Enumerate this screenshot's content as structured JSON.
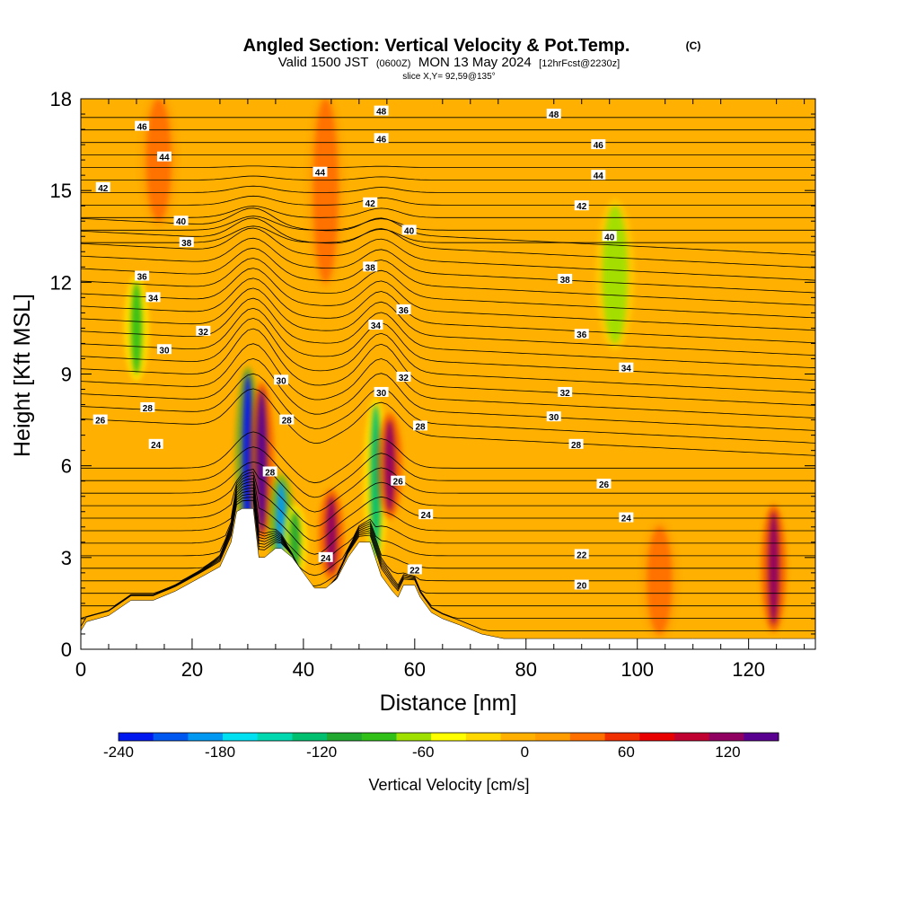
{
  "chart_data": {
    "type": "heatmap",
    "title": "Angled Section: Vertical Velocity & Pot.Temp.",
    "title_mark": "(C)",
    "subtitle_main": "Valid 1500 JST",
    "subtitle_utc": "(0600Z)",
    "subtitle_date": "MON 13 May 2024",
    "subtitle_fcst": "[12hrFcst@2230z]",
    "slice_label": "slice X,Y= 92,59@135°",
    "xlabel": "Distance [nm]",
    "ylabel": "Height [Kft MSL]",
    "xlim": [
      0,
      132
    ],
    "ylim": [
      0,
      18
    ],
    "x_ticks": [
      "0",
      "20",
      "40",
      "60",
      "80",
      "100",
      "120"
    ],
    "x_tick_values": [
      0,
      20,
      40,
      60,
      80,
      100,
      120
    ],
    "y_ticks": [
      "0",
      "3",
      "6",
      "9",
      "12",
      "15",
      "18"
    ],
    "y_tick_values": [
      0,
      3,
      6,
      9,
      12,
      15,
      18
    ],
    "colorbar": {
      "label": "Vertical Velocity [cm/s]",
      "min": -240,
      "max": 150,
      "tick_labels": [
        "-240",
        "-180",
        "-120",
        "-60",
        "0",
        "60",
        "120"
      ],
      "tick_values": [
        -240,
        -180,
        -120,
        -60,
        0,
        60,
        120
      ],
      "colors": [
        "#0018f0",
        "#0058f0",
        "#0098f0",
        "#00e0f0",
        "#00d8b0",
        "#00c070",
        "#20a830",
        "#30c018",
        "#a0e000",
        "#ffff00",
        "#ffd800",
        "#ffb000",
        "#ff9c00",
        "#ff7000",
        "#f03000",
        "#e80000",
        "#c00030",
        "#900060",
        "#5a0090"
      ]
    },
    "background_velocity": 5,
    "terrain_profile": {
      "x": [
        0,
        1,
        5,
        9,
        13,
        17,
        21,
        25,
        27,
        28,
        29,
        31,
        32,
        33,
        35,
        36,
        38,
        40,
        42,
        44,
        46,
        48,
        50,
        52,
        54,
        56,
        57,
        58,
        60,
        61,
        63,
        65,
        68,
        72,
        76,
        80,
        90,
        100,
        110,
        120,
        124,
        126,
        132
      ],
      "height": [
        0.6,
        0.9,
        1.1,
        1.6,
        1.6,
        1.9,
        2.3,
        2.7,
        3.5,
        4.5,
        4.6,
        4.6,
        3.0,
        3.0,
        3.3,
        3.3,
        3.0,
        2.5,
        2.0,
        2.0,
        2.3,
        3.0,
        3.5,
        3.5,
        2.4,
        1.9,
        1.7,
        2.1,
        2.1,
        1.7,
        1.2,
        1.0,
        0.8,
        0.5,
        0.35,
        0.35,
        0.35,
        0.35,
        0.35,
        0.35,
        0.35,
        0.35,
        0.35
      ]
    },
    "velocity_features": [
      {
        "x": 30,
        "ymin": 3.5,
        "ymax": 9.0,
        "value": -230
      },
      {
        "x": 32.5,
        "ymin": 3.8,
        "ymax": 8.5,
        "value": 130
      },
      {
        "x": 36,
        "ymin": 2.8,
        "ymax": 5.5,
        "value": -190
      },
      {
        "x": 38.5,
        "ymin": 2.5,
        "ymax": 4.5,
        "value": -110
      },
      {
        "x": 45,
        "ymin": 2.5,
        "ymax": 5.0,
        "value": 120
      },
      {
        "x": 53,
        "ymin": 3.0,
        "ymax": 8.0,
        "value": -120
      },
      {
        "x": 55.5,
        "ymin": 4.5,
        "ymax": 7.5,
        "value": 120
      },
      {
        "x": 10,
        "ymin": 9.0,
        "ymax": 12.0,
        "value": -90
      },
      {
        "x": 96,
        "ymin": 10.0,
        "ymax": 14.5,
        "value": -60
      },
      {
        "x": 124.5,
        "ymin": 0.8,
        "ymax": 4.5,
        "value": 120
      },
      {
        "x": 14,
        "ymin": 14.0,
        "ymax": 18.0,
        "value": 30
      },
      {
        "x": 44,
        "ymin": 12.0,
        "ymax": 18.0,
        "value": 30
      },
      {
        "x": 104,
        "ymin": 0.5,
        "ymax": 4.0,
        "value": 30
      }
    ],
    "isentropes": {
      "levels": [
        20,
        22,
        24,
        26,
        28,
        30,
        32,
        34,
        36,
        38,
        40,
        42,
        44,
        46,
        48
      ],
      "labels": [
        {
          "text": "26",
          "x": 3.5,
          "y": 7.5
        },
        {
          "text": "24",
          "x": 13.5,
          "y": 6.7
        },
        {
          "text": "28",
          "x": 12,
          "y": 7.9
        },
        {
          "text": "30",
          "x": 15,
          "y": 9.8
        },
        {
          "text": "32",
          "x": 22,
          "y": 10.4
        },
        {
          "text": "34",
          "x": 13,
          "y": 11.5
        },
        {
          "text": "36",
          "x": 11,
          "y": 12.2
        },
        {
          "text": "38",
          "x": 19,
          "y": 13.3
        },
        {
          "text": "40",
          "x": 18,
          "y": 14.0
        },
        {
          "text": "42",
          "x": 4,
          "y": 15.1
        },
        {
          "text": "44",
          "x": 15,
          "y": 16.1
        },
        {
          "text": "46",
          "x": 11,
          "y": 17.1
        },
        {
          "text": "30",
          "x": 36,
          "y": 8.8
        },
        {
          "text": "28",
          "x": 37,
          "y": 7.5
        },
        {
          "text": "28",
          "x": 34,
          "y": 5.8
        },
        {
          "text": "24",
          "x": 44,
          "y": 3.0
        },
        {
          "text": "30",
          "x": 54,
          "y": 8.4
        },
        {
          "text": "32",
          "x": 58,
          "y": 8.9
        },
        {
          "text": "34",
          "x": 53,
          "y": 10.6
        },
        {
          "text": "28",
          "x": 61,
          "y": 7.3
        },
        {
          "text": "26",
          "x": 57,
          "y": 5.5
        },
        {
          "text": "24",
          "x": 62,
          "y": 4.4
        },
        {
          "text": "22",
          "x": 60,
          "y": 2.6
        },
        {
          "text": "36",
          "x": 58,
          "y": 11.1
        },
        {
          "text": "38",
          "x": 52,
          "y": 12.5
        },
        {
          "text": "40",
          "x": 59,
          "y": 13.7
        },
        {
          "text": "42",
          "x": 52,
          "y": 14.6
        },
        {
          "text": "44",
          "x": 43,
          "y": 15.6
        },
        {
          "text": "46",
          "x": 54,
          "y": 16.7
        },
        {
          "text": "48",
          "x": 54,
          "y": 17.6
        },
        {
          "text": "48",
          "x": 85,
          "y": 17.5
        },
        {
          "text": "46",
          "x": 93,
          "y": 16.5
        },
        {
          "text": "44",
          "x": 93,
          "y": 15.5
        },
        {
          "text": "42",
          "x": 90,
          "y": 14.5
        },
        {
          "text": "40",
          "x": 95,
          "y": 13.5
        },
        {
          "text": "38",
          "x": 87,
          "y": 12.1
        },
        {
          "text": "36",
          "x": 90,
          "y": 10.3
        },
        {
          "text": "34",
          "x": 98,
          "y": 9.2
        },
        {
          "text": "32",
          "x": 87,
          "y": 8.4
        },
        {
          "text": "30",
          "x": 85,
          "y": 7.6
        },
        {
          "text": "28",
          "x": 89,
          "y": 6.7
        },
        {
          "text": "26",
          "x": 94,
          "y": 5.4
        },
        {
          "text": "24",
          "x": 98,
          "y": 4.3
        },
        {
          "text": "22",
          "x": 90,
          "y": 3.1
        },
        {
          "text": "20",
          "x": 90,
          "y": 2.1
        }
      ]
    },
    "grid": false,
    "legend": "bottom"
  }
}
